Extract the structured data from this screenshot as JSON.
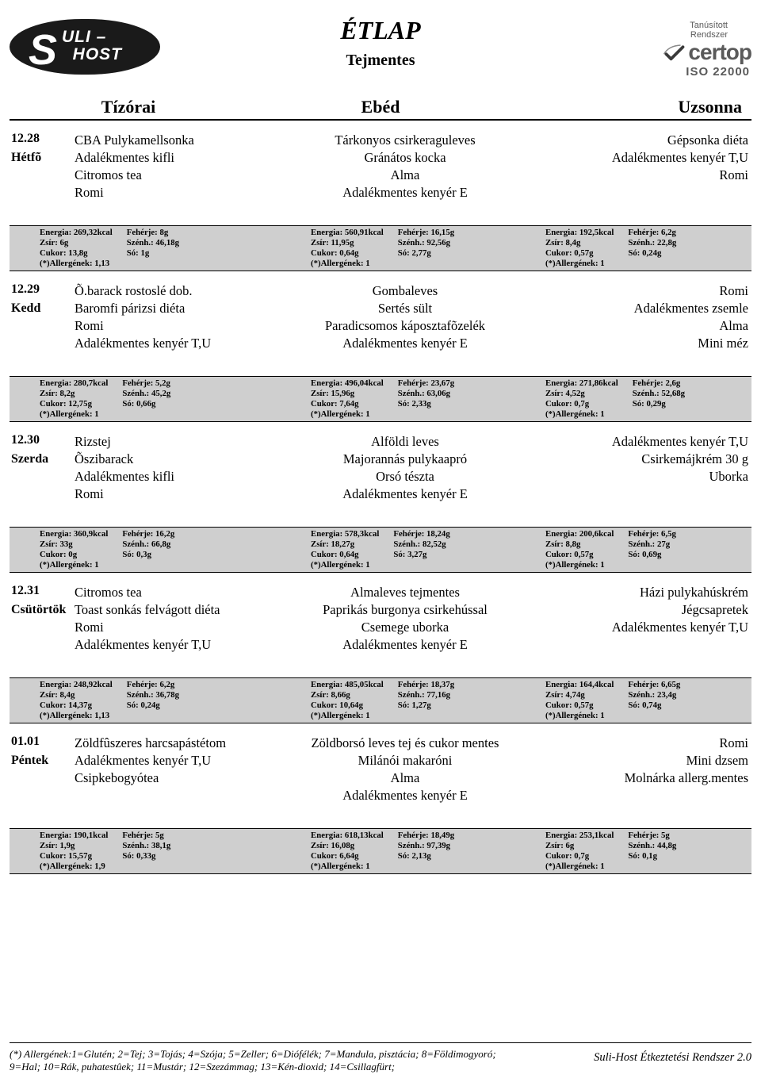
{
  "header": {
    "logo_text1": "ULI –",
    "logo_text2": "HOST",
    "title": "ÉTLAP",
    "subtitle": "Tejmentes",
    "cert_small1": "Tanúsított",
    "cert_small2": "Rendszer",
    "cert_name": "certop",
    "cert_iso": "ISO 22000"
  },
  "columns": {
    "tizorai": "Tízórai",
    "ebed": "Ebéd",
    "uzsonna": "Uzsonna"
  },
  "days": [
    {
      "date": "12.28",
      "day": "Hétfõ",
      "tizorai": [
        "CBA Pulykamellsonka",
        "Adalékmentes kifli",
        "Citromos tea",
        "Romi"
      ],
      "ebed": [
        "Tárkonyos csirkeraguleves",
        "Gránátos kocka",
        "Alma",
        "Adalékmentes kenyér E"
      ],
      "uzsonna": [
        "Gépsonka diéta",
        "Adalékmentes kenyér T,U",
        "Romi"
      ],
      "nut": {
        "tizorai": {
          "energia": "269,32kcal",
          "zsir": "6g",
          "cukor": "13,8g",
          "allerg": "1,13",
          "feherje": "8g",
          "szenh": "46,18g",
          "so": "1g"
        },
        "ebed": {
          "energia": "560,91kcal",
          "zsir": "11,95g",
          "cukor": "0,64g",
          "allerg": "1",
          "feherje": "16,15g",
          "szenh": "92,56g",
          "so": "2,77g"
        },
        "uzsonna": {
          "energia": "192,5kcal",
          "zsir": "8,4g",
          "cukor": "0,57g",
          "allerg": "1",
          "feherje": "6,2g",
          "szenh": "22,8g",
          "so": "0,24g"
        }
      }
    },
    {
      "date": "12.29",
      "day": "Kedd",
      "tizorai": [
        "Õ.barack rostoslé dob.",
        "Baromfi párizsi diéta",
        "Romi",
        "Adalékmentes kenyér T,U"
      ],
      "ebed": [
        "Gombaleves",
        "Sertés sült",
        "Paradicsomos káposztafõzelék",
        "Adalékmentes kenyér E"
      ],
      "uzsonna": [
        "Romi",
        "Adalékmentes zsemle",
        "Alma",
        "Mini méz"
      ],
      "nut": {
        "tizorai": {
          "energia": "280,7kcal",
          "zsir": "8,2g",
          "cukor": "12,75g",
          "allerg": "1",
          "feherje": "5,2g",
          "szenh": "45,2g",
          "so": "0,66g"
        },
        "ebed": {
          "energia": "496,04kcal",
          "zsir": "15,96g",
          "cukor": "7,64g",
          "allerg": "1",
          "feherje": "23,67g",
          "szenh": "63,06g",
          "so": "2,33g"
        },
        "uzsonna": {
          "energia": "271,86kcal",
          "zsir": "4,52g",
          "cukor": "0,7g",
          "allerg": "1",
          "feherje": "2,6g",
          "szenh": "52,68g",
          "so": "0,29g"
        }
      }
    },
    {
      "date": "12.30",
      "day": "Szerda",
      "tizorai": [
        "Rizstej",
        "Õszibarack",
        "Adalékmentes kifli",
        "Romi"
      ],
      "ebed": [
        "Alföldi leves",
        "Majorannás pulykaapró",
        "Orsó tészta",
        "Adalékmentes kenyér E"
      ],
      "uzsonna": [
        "Adalékmentes kenyér T,U",
        "Csirkemájkrém 30 g",
        "Uborka"
      ],
      "nut": {
        "tizorai": {
          "energia": "360,9kcal",
          "zsir": "33g",
          "cukor": "0g",
          "allerg": "1",
          "feherje": "16,2g",
          "szenh": "66,8g",
          "so": "0,3g"
        },
        "ebed": {
          "energia": "578,3kcal",
          "zsir": "18,27g",
          "cukor": "0,64g",
          "allerg": "1",
          "feherje": "18,24g",
          "szenh": "82,52g",
          "so": "3,27g"
        },
        "uzsonna": {
          "energia": "200,6kcal",
          "zsir": "8,8g",
          "cukor": "0,57g",
          "allerg": "1",
          "feherje": "6,5g",
          "szenh": "27g",
          "so": "0,69g"
        }
      }
    },
    {
      "date": "12.31",
      "day": "Csütörtök",
      "tizorai": [
        "Citromos tea",
        "Toast sonkás felvágott diéta",
        "Romi",
        "Adalékmentes kenyér T,U"
      ],
      "ebed": [
        "Almaleves tejmentes",
        "Paprikás burgonya csirkehússal",
        "Csemege uborka",
        "Adalékmentes kenyér E"
      ],
      "uzsonna": [
        "Házi pulykahúskrém",
        "Jégcsapretek",
        "Adalékmentes kenyér T,U"
      ],
      "nut": {
        "tizorai": {
          "energia": "248,92kcal",
          "zsir": "8,4g",
          "cukor": "14,37g",
          "allerg": "1,13",
          "feherje": "6,2g",
          "szenh": "36,78g",
          "so": "0,24g"
        },
        "ebed": {
          "energia": "485,05kcal",
          "zsir": "8,66g",
          "cukor": "10,64g",
          "allerg": "1",
          "feherje": "18,37g",
          "szenh": "77,16g",
          "so": "1,27g"
        },
        "uzsonna": {
          "energia": "164,4kcal",
          "zsir": "4,74g",
          "cukor": "0,57g",
          "allerg": "1",
          "feherje": "6,65g",
          "szenh": "23,4g",
          "so": "0,74g"
        }
      }
    },
    {
      "date": "01.01",
      "day": "Péntek",
      "tizorai": [
        "Zöldfûszeres harcsapástétom",
        "Adalékmentes kenyér T,U",
        "Csipkebogyótea"
      ],
      "ebed": [
        "Zöldborsó leves tej és cukor mentes",
        "Milánói makaróni",
        "Alma",
        "Adalékmentes kenyér E"
      ],
      "uzsonna": [
        "Romi",
        "Mini dzsem",
        "Molnárka allerg.mentes"
      ],
      "nut": {
        "tizorai": {
          "energia": "190,1kcal",
          "zsir": "1,9g",
          "cukor": "15,57g",
          "allerg": "1,9",
          "feherje": "5g",
          "szenh": "38,1g",
          "so": "0,33g"
        },
        "ebed": {
          "energia": "618,13kcal",
          "zsir": "16,08g",
          "cukor": "6,64g",
          "allerg": "1",
          "feherje": "18,49g",
          "szenh": "97,39g",
          "so": "2,13g"
        },
        "uzsonna": {
          "energia": "253,1kcal",
          "zsir": "6g",
          "cukor": "0,7g",
          "allerg": "1",
          "feherje": "5g",
          "szenh": "44,8g",
          "so": "0,1g"
        }
      }
    }
  ],
  "labels": {
    "energia": "Energia:",
    "zsir": "Zsír:",
    "cukor": "Cukor:",
    "allerg": "(*)Allergének:",
    "feherje": "Fehérje:",
    "szenh": "Szénh.:",
    "so": "Só:"
  },
  "footer": {
    "allergen_line1": "(*) Allergének:1=Glutén; 2=Tej; 3=Tojás; 4=Szója; 5=Zeller; 6=Diófélék; 7=Mandula, pisztácia; 8=Földimogyoró;",
    "allergen_line2": "9=Hal; 10=Rák, puhatestûek; 11=Mustár; 12=Szezámmag; 13=Kén-dioxid; 14=Csillagfürt;",
    "system": "Suli-Host Étkeztetési Rendszer 2.0"
  }
}
